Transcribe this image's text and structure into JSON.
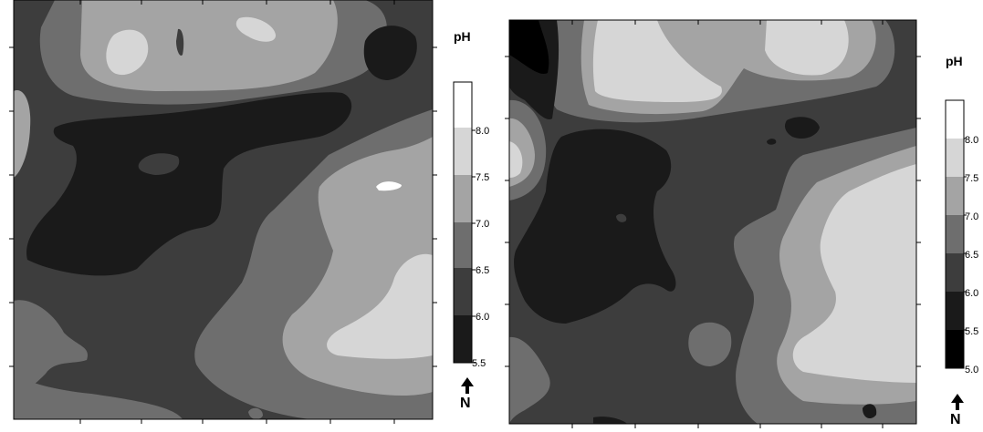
{
  "chart_data": [
    {
      "type": "heatmap",
      "legend": {
        "title": "pH",
        "tick_labels": [
          "8.0",
          "7.5",
          "7.0",
          "6.5",
          "6.0",
          "5.5"
        ],
        "classes": [
          {
            "range": [
              5.5,
              6.0
            ],
            "color": "#1a1a1a"
          },
          {
            "range": [
              6.0,
              6.5
            ],
            "color": "#3d3d3d"
          },
          {
            "range": [
              6.5,
              7.0
            ],
            "color": "#6e6e6e"
          },
          {
            "range": [
              7.0,
              7.5
            ],
            "color": "#a4a4a4"
          },
          {
            "range": [
              7.5,
              8.0
            ],
            "color": "#d6d6d6"
          },
          {
            "range": [
              8.0,
              8.5
            ],
            "color": "#ffffff"
          }
        ]
      },
      "north_arrow": "N"
    },
    {
      "type": "heatmap",
      "legend": {
        "title": "pH",
        "tick_labels": [
          "8.0",
          "7.5",
          "7.0",
          "6.5",
          "6.0",
          "5.5",
          "5.0"
        ],
        "classes": [
          {
            "range": [
              5.0,
              5.5
            ],
            "color": "#000000"
          },
          {
            "range": [
              5.5,
              6.0
            ],
            "color": "#1a1a1a"
          },
          {
            "range": [
              6.0,
              6.5
            ],
            "color": "#3d3d3d"
          },
          {
            "range": [
              6.5,
              7.0
            ],
            "color": "#6e6e6e"
          },
          {
            "range": [
              7.0,
              7.5
            ],
            "color": "#a4a4a4"
          },
          {
            "range": [
              7.5,
              8.0
            ],
            "color": "#d6d6d6"
          },
          {
            "range": [
              8.0,
              8.5
            ],
            "color": "#ffffff"
          }
        ]
      },
      "north_arrow": "N"
    }
  ],
  "colors": {
    "ph_5_0": "#000000",
    "ph_5_5": "#1a1a1a",
    "ph_6_0": "#3d3d3d",
    "ph_6_5": "#6e6e6e",
    "ph_7_0": "#a4a4a4",
    "ph_7_5": "#d6d6d6",
    "ph_8_0": "#ffffff"
  }
}
